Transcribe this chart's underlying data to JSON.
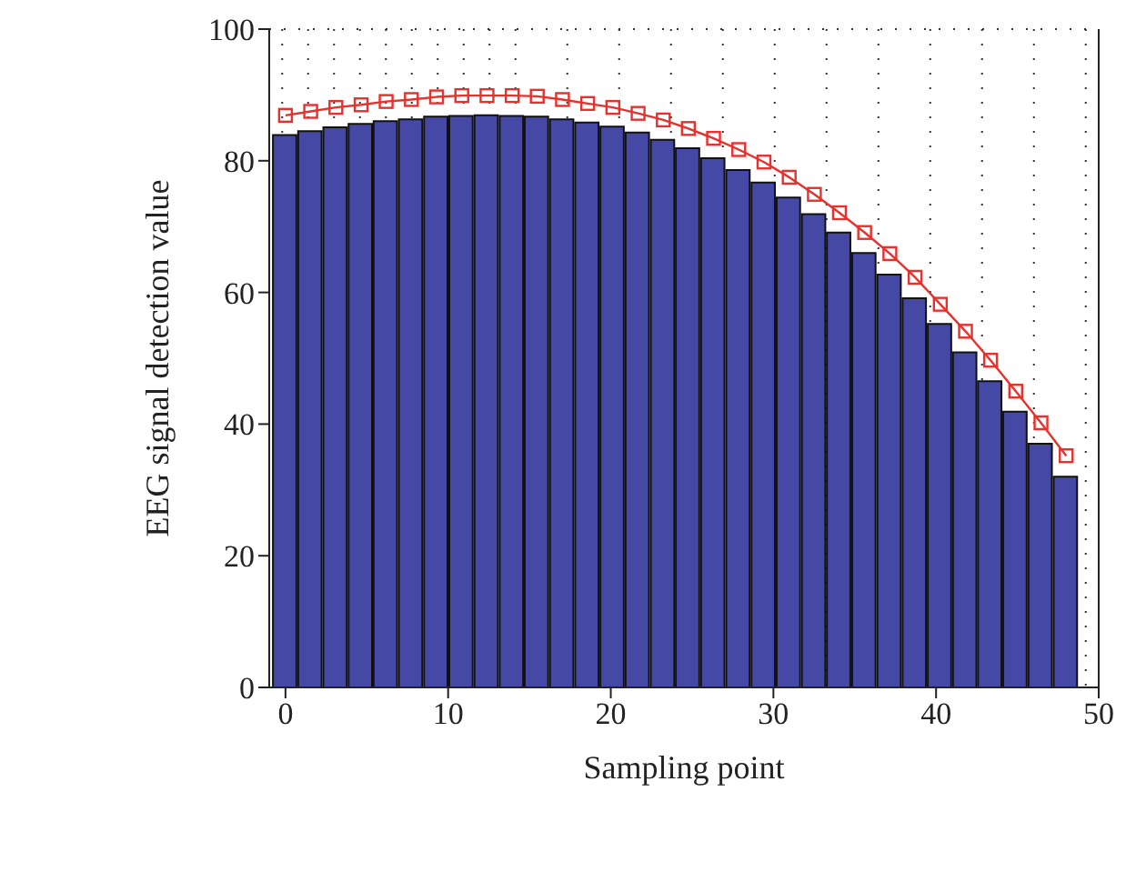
{
  "chart_data": {
    "type": "bar",
    "xlabel": "Sampling point",
    "ylabel": "EEG signal detection value",
    "x": [
      0,
      1.55,
      3.1,
      4.65,
      6.19,
      7.74,
      9.29,
      10.84,
      12.39,
      13.94,
      15.48,
      17.03,
      18.58,
      20.13,
      21.68,
      23.23,
      24.77,
      26.32,
      27.87,
      29.42,
      30.97,
      32.52,
      34.06,
      35.61,
      37.16,
      38.71,
      40.26,
      41.81,
      43.35,
      44.9,
      46.45,
      48
    ],
    "series": [
      {
        "color": "#4549a5",
        "values": [
          83.9,
          84.5,
          85.1,
          85.6,
          86,
          86.3,
          86.7,
          86.8,
          86.9,
          86.8,
          86.7,
          86.3,
          85.8,
          85.2,
          84.3,
          83.2,
          81.9,
          80.4,
          78.6,
          76.7,
          74.4,
          71.9,
          69.1,
          66,
          62.7,
          59.1,
          55.2,
          50.9,
          46.5,
          41.9,
          37,
          32
        ]
      },
      {
        "type": "line",
        "color": "#e8302c",
        "values": [
          86.9,
          87.5,
          88.1,
          88.5,
          89,
          89.3,
          89.7,
          89.9,
          89.9,
          89.9,
          89.8,
          89.3,
          88.7,
          88.1,
          87.2,
          86.2,
          84.9,
          83.4,
          81.7,
          79.8,
          77.5,
          74.9,
          72.1,
          69.1,
          65.9,
          62.3,
          58.2,
          54.1,
          49.7,
          45,
          40.2,
          35.2
        ]
      }
    ],
    "xlim": [
      -1,
      50
    ],
    "xticks": [
      0,
      10,
      20,
      30,
      40,
      50
    ],
    "ylim": [
      0,
      100
    ],
    "yticks": [
      0,
      20,
      40,
      60,
      80,
      100
    ],
    "grid": true,
    "legend": false,
    "marker": "square",
    "line_style": "solid"
  }
}
